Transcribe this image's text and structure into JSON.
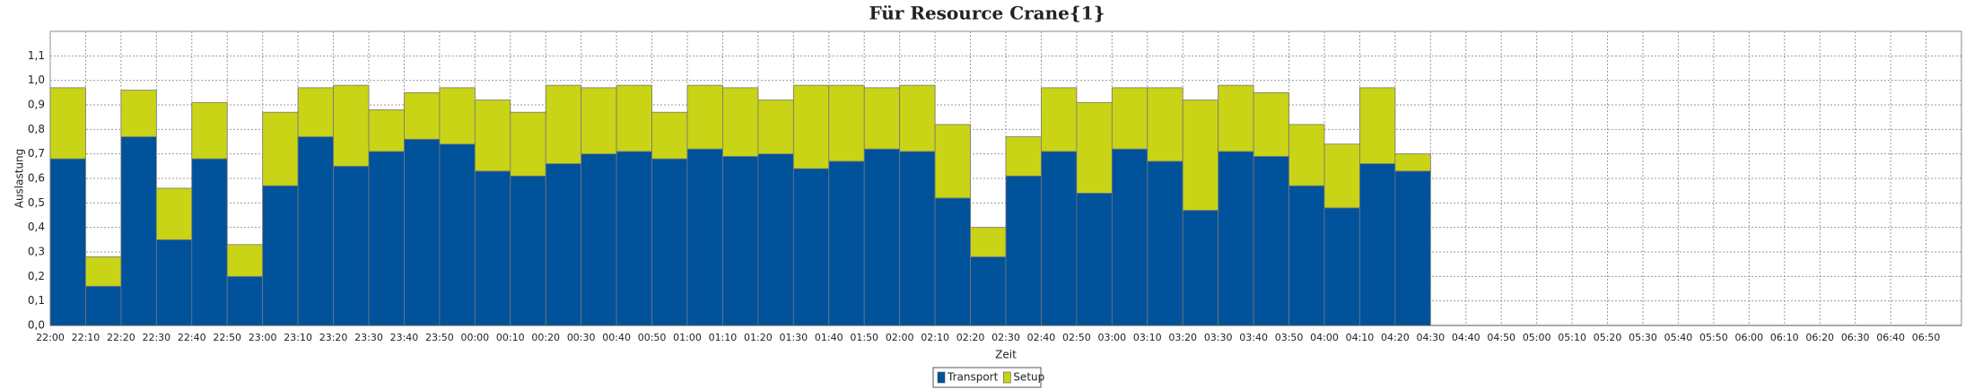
{
  "chart_data": {
    "type": "stacked_bar",
    "title": "Für Resource Crane{1}",
    "y_label": "Auslastung",
    "x_label": "Zeit",
    "categories": [
      "22:00",
      "22:10",
      "22:20",
      "22:30",
      "22:40",
      "22:50",
      "23:00",
      "23:10",
      "23:20",
      "23:30",
      "23:40",
      "23:50",
      "00:00",
      "00:10",
      "00:20",
      "00:30",
      "00:40",
      "00:50",
      "01:00",
      "01:10",
      "01:20",
      "01:30",
      "01:40",
      "01:50",
      "02:00",
      "02:10",
      "02:20",
      "02:30",
      "02:40",
      "02:50",
      "03:00",
      "03:10",
      "03:20",
      "03:30",
      "03:40",
      "03:50",
      "04:00",
      "04:10",
      "04:20",
      "04:30",
      "04:40",
      "04:50",
      "05:00",
      "05:10",
      "05:20",
      "05:30",
      "05:40",
      "05:50",
      "06:00",
      "06:10",
      "06:20",
      "06:30",
      "06:40",
      "06:50"
    ],
    "series": [
      {
        "name": "Transport",
        "color": "#00529b",
        "values": [
          0.68,
          0.16,
          0.77,
          0.35,
          0.68,
          0.2,
          0.57,
          0.77,
          0.65,
          0.71,
          0.76,
          0.74,
          0.63,
          0.61,
          0.66,
          0.7,
          0.71,
          0.68,
          0.72,
          0.69,
          0.7,
          0.64,
          0.67,
          0.72,
          0.71,
          0.52,
          0.28,
          0.61,
          0.71,
          0.54,
          0.72,
          0.67,
          0.47,
          0.71,
          0.69,
          0.57,
          0.48,
          0.66,
          0.63,
          null,
          null,
          null,
          null,
          null,
          null,
          null,
          null,
          null,
          null,
          null,
          null,
          null,
          null,
          null
        ]
      },
      {
        "name": "Setup",
        "color": "#c8d415",
        "values": [
          0.29,
          0.12,
          0.19,
          0.21,
          0.23,
          0.13,
          0.3,
          0.2,
          0.33,
          0.17,
          0.19,
          0.23,
          0.29,
          0.26,
          0.32,
          0.27,
          0.27,
          0.19,
          0.26,
          0.28,
          0.22,
          0.34,
          0.31,
          0.25,
          0.27,
          0.3,
          0.12,
          0.16,
          0.26,
          0.37,
          0.25,
          0.3,
          0.45,
          0.27,
          0.26,
          0.25,
          0.26,
          0.31,
          0.07,
          null,
          null,
          null,
          null,
          null,
          null,
          null,
          null,
          null,
          null,
          null,
          null,
          null,
          null,
          null
        ]
      }
    ],
    "ylim": [
      0,
      1.2
    ],
    "yticks": [
      {
        "value": 0,
        "label": "0,0"
      },
      {
        "value": 0.1,
        "label": "0,1"
      },
      {
        "value": 0.2,
        "label": "0,2"
      },
      {
        "value": 0.3,
        "label": "0,3"
      },
      {
        "value": 0.4,
        "label": "0,4"
      },
      {
        "value": 0.5,
        "label": "0,5"
      },
      {
        "value": 0.6,
        "label": "0,6"
      },
      {
        "value": 0.7,
        "label": "0,7"
      },
      {
        "value": 0.8,
        "label": "0,8"
      },
      {
        "value": 0.9,
        "label": "0,9"
      },
      {
        "value": 1,
        "label": "1,0"
      },
      {
        "value": 1.1,
        "label": "1,1"
      }
    ],
    "grid": true,
    "legend": "bottom"
  }
}
